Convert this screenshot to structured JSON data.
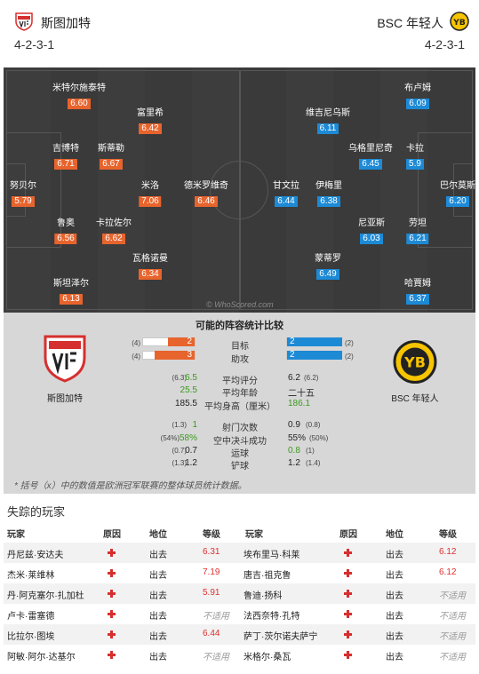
{
  "header": {
    "home": {
      "name": "斯图加特",
      "formation": "4-2-3-1"
    },
    "away": {
      "name": "BSC 年轻人",
      "formation": "4-2-3-1"
    }
  },
  "pitch": {
    "home_players": [
      {
        "name": "努贝尔",
        "rating": "5.79"
      },
      {
        "name": "米特尔施泰特",
        "rating": "6.60"
      },
      {
        "name": "吉博特",
        "rating": "6.71"
      },
      {
        "name": "鲁奥",
        "rating": "6.56"
      },
      {
        "name": "斯坦泽尔",
        "rating": "6.13"
      },
      {
        "name": "斯蒂勒",
        "rating": "6.67"
      },
      {
        "name": "卡拉佐尔",
        "rating": "6.62"
      },
      {
        "name": "富里希",
        "rating": "6.42"
      },
      {
        "name": "米洛",
        "rating": "7.06"
      },
      {
        "name": "瓦格诺曼",
        "rating": "6.34"
      },
      {
        "name": "德米罗维奇",
        "rating": "6.46"
      }
    ],
    "away_players": [
      {
        "name": "布卢姆",
        "rating": "6.09"
      },
      {
        "name": "维吉尼乌斯",
        "rating": "6.11"
      },
      {
        "name": "乌格里尼奇",
        "rating": "6.45"
      },
      {
        "name": "卡拉",
        "rating": "5.9"
      },
      {
        "name": "甘文拉",
        "rating": "6.44"
      },
      {
        "name": "伊梅里",
        "rating": "6.38"
      },
      {
        "name": "巴尔莫斯",
        "rating": "6.20"
      },
      {
        "name": "尼亚斯",
        "rating": "6.03"
      },
      {
        "name": "劳坦",
        "rating": "6.21"
      },
      {
        "name": "蒙蒂罗",
        "rating": "6.49"
      },
      {
        "name": "哈賈姆",
        "rating": "6.37"
      }
    ],
    "watermark": "© WhoScored.com"
  },
  "stats": {
    "title": "可能的阵容统计比较",
    "home_name": "斯图加特",
    "away_name": "BSC 年轻人",
    "bars": [
      {
        "label": "目标",
        "home": "2",
        "home_prev": "(4)",
        "away": "2",
        "away_prev": "(2)",
        "home_frac": 0.5,
        "away_frac": 1.0
      },
      {
        "label": "助攻",
        "home": "3",
        "home_prev": "(4)",
        "away": "2",
        "away_prev": "(2)",
        "home_frac": 0.75,
        "away_frac": 1.0
      }
    ],
    "rows": [
      {
        "label": "平均评分",
        "home": "6.5",
        "home_prev": "(6.3)",
        "away": "6.2",
        "away_prev": "(6.2)",
        "home_green": true,
        "away_green": false
      },
      {
        "label": "平均年龄",
        "home": "25.5",
        "home_prev": "",
        "away": "二十五",
        "away_prev": "",
        "home_green": true,
        "away_green": false
      },
      {
        "label": "平均身高（厘米）",
        "home": "185.5",
        "home_prev": "",
        "away": "186.1",
        "away_prev": "",
        "home_green": false,
        "away_green": true
      },
      {
        "label": "射门次数",
        "home": "1",
        "home_prev": "(1.3)",
        "away": "0.9",
        "away_prev": "(0.8)",
        "home_green": true,
        "away_green": false
      },
      {
        "label": "空中决斗成功",
        "home": "58%",
        "home_prev": "(54%)",
        "away": "55%",
        "away_prev": "(50%)",
        "home_green": true,
        "away_green": false
      },
      {
        "label": "运球",
        "home": "0.7",
        "home_prev": "(0.7)",
        "away": "0.8",
        "away_prev": "(1)",
        "home_green": false,
        "away_green": true
      },
      {
        "label": "铲球",
        "home": "1.2",
        "home_prev": "(1.3)",
        "away": "1.2",
        "away_prev": "(1.4)",
        "home_green": false,
        "away_green": false
      }
    ],
    "note": "* 括号（x）中的数值是欧洲冠军联赛的整体球员统计数据。",
    "colors": {
      "home": "#e7642d",
      "away": "#1d8ad6",
      "better": "#3a9b1d"
    }
  },
  "missing": {
    "title": "失踪的玩家",
    "headers": {
      "player": "玩家",
      "reason": "原因",
      "status": "地位",
      "rating": "等级"
    },
    "home": [
      {
        "player": "丹尼兹·安达夫",
        "status": "出去",
        "rating": "6.31"
      },
      {
        "player": "杰米·莱维林",
        "status": "出去",
        "rating": "7.19"
      },
      {
        "player": "丹·阿克塞尔·扎加杜",
        "status": "出去",
        "rating": "5.91"
      },
      {
        "player": "卢卡·雷塞德",
        "status": "出去",
        "rating": "不适用"
      },
      {
        "player": "比拉尔·图埃",
        "status": "出去",
        "rating": "6.44"
      },
      {
        "player": "阿敏·阿尔·达基尔",
        "status": "出去",
        "rating": "不适用"
      }
    ],
    "away": [
      {
        "player": "埃布里马·科莱",
        "status": "出去",
        "rating": "6.12"
      },
      {
        "player": "唐吉·祖克鲁",
        "status": "出去",
        "rating": "6.12"
      },
      {
        "player": "鲁迪·扬科",
        "status": "出去",
        "rating": "不适用"
      },
      {
        "player": "法西奈特·孔特",
        "status": "出去",
        "rating": "不适用"
      },
      {
        "player": "萨丁·茨尔诺夫萨宁",
        "status": "出去",
        "rating": "不适用"
      },
      {
        "player": "米格尔·桑瓦",
        "status": "出去",
        "rating": "不适用"
      }
    ]
  }
}
